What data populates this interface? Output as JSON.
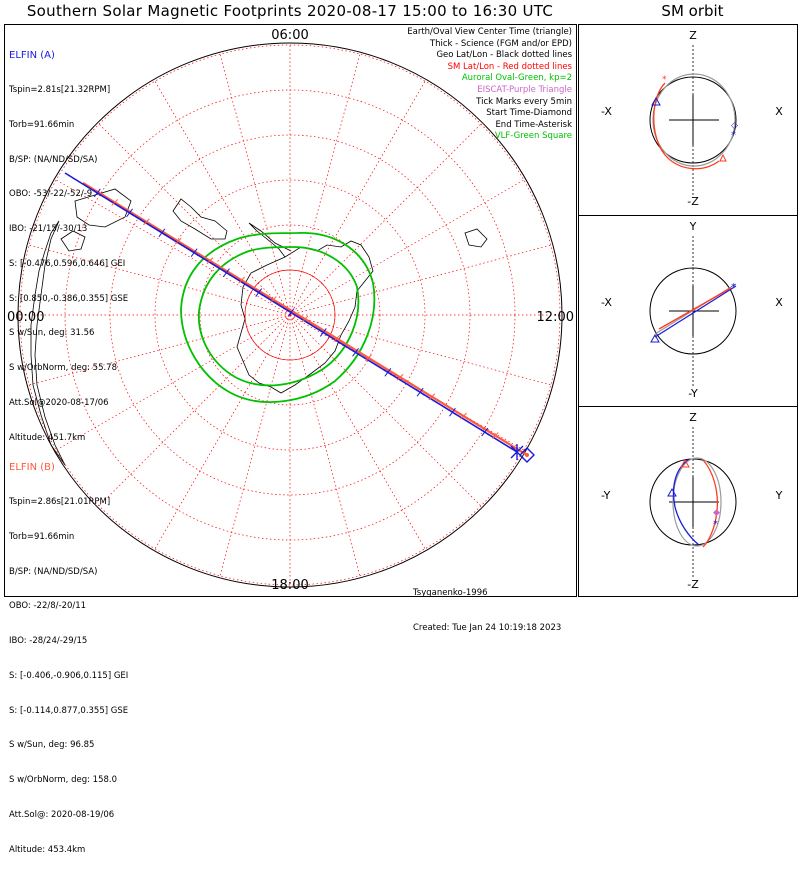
{
  "title": "Southern Solar Magnetic Footprints 2020-08-17 15:00 to 16:30 UTC",
  "orbit_title": "SM orbit",
  "clock_labels": {
    "top": "06:00",
    "left": "00:00",
    "right": "12:00",
    "bottom": "18:00"
  },
  "elfin_a": {
    "header": "ELFIN (A)",
    "color": "#1a1adb",
    "lines": [
      "Tspin=2.81s[21.32RPM]",
      "Torb=91.66min",
      "B/SP: (NA/ND/SD/SA)",
      "OBO: -53/-22/-52/-9",
      "IBO: -21/15/-30/13",
      "S: [-0.476,0.596,0.646] GEI",
      "S: [0.850,-0.386,0.355] GSE",
      "S w/Sun, deg: 31.56",
      "S w/OrbNorm, deg: 55.78",
      "Att.Sol@2020-08-17/06",
      "Altitude: 451.7km"
    ]
  },
  "elfin_b": {
    "header": "ELFIN (B)",
    "color": "#ff5a3c",
    "lines": [
      "Tspin=2.86s[21.01RPM]",
      "Torb=91.66min",
      "B/SP: (NA/ND/SD/SA)",
      "OBO: -22/8/-20/11",
      "IBO: -28/24/-29/15",
      "S: [-0.406,-0.906,0.115] GEI",
      "S: [-0.114,0.877,0.355] GSE",
      "S w/Sun, deg: 96.85",
      "S w/OrbNorm, deg: 158.0",
      "Att.Sol@: 2020-08-19/06",
      "Altitude: 453.4km"
    ]
  },
  "legend": [
    {
      "text": "Earth/Oval View Center Time (triangle)",
      "color": "#000000"
    },
    {
      "text": "Thick - Science (FGM and/or EPD)",
      "color": "#000000"
    },
    {
      "text": "Geo Lat/Lon - Black dotted lines",
      "color": "#000000"
    },
    {
      "text": "SM Lat/Lon - Red dotted lines",
      "color": "#ff0000"
    },
    {
      "text": "Auroral Oval-Green, kp=2",
      "color": "#00c000"
    },
    {
      "text": "EISCAT-Purple Triangle",
      "color": "#cc66cc"
    },
    {
      "text": "Tick Marks every 5min",
      "color": "#000000"
    },
    {
      "text": "Start Time-Diamond",
      "color": "#000000"
    },
    {
      "text": "End Time-Asterisk",
      "color": "#000000"
    },
    {
      "text": "VLF-Green Square",
      "color": "#00c000"
    }
  ],
  "credits": {
    "model": "Tsyganenko-1996",
    "created": "Created: Tue Jan 24 10:19:18 2023"
  },
  "orbit_panels": [
    {
      "top": "Z",
      "bottom": "-Z",
      "left": "-X",
      "right": "X"
    },
    {
      "top": "Y",
      "bottom": "-Y",
      "left": "-X",
      "right": "X"
    },
    {
      "top": "Z",
      "bottom": "-Z",
      "left": "-Y",
      "right": "Y"
    }
  ],
  "colors": {
    "elfin_a": "#1a1adb",
    "elfin_b": "#ff5a3c",
    "sm_grid": "#ff0000",
    "auroral_oval": "#00c000",
    "coastline": "#000000"
  }
}
